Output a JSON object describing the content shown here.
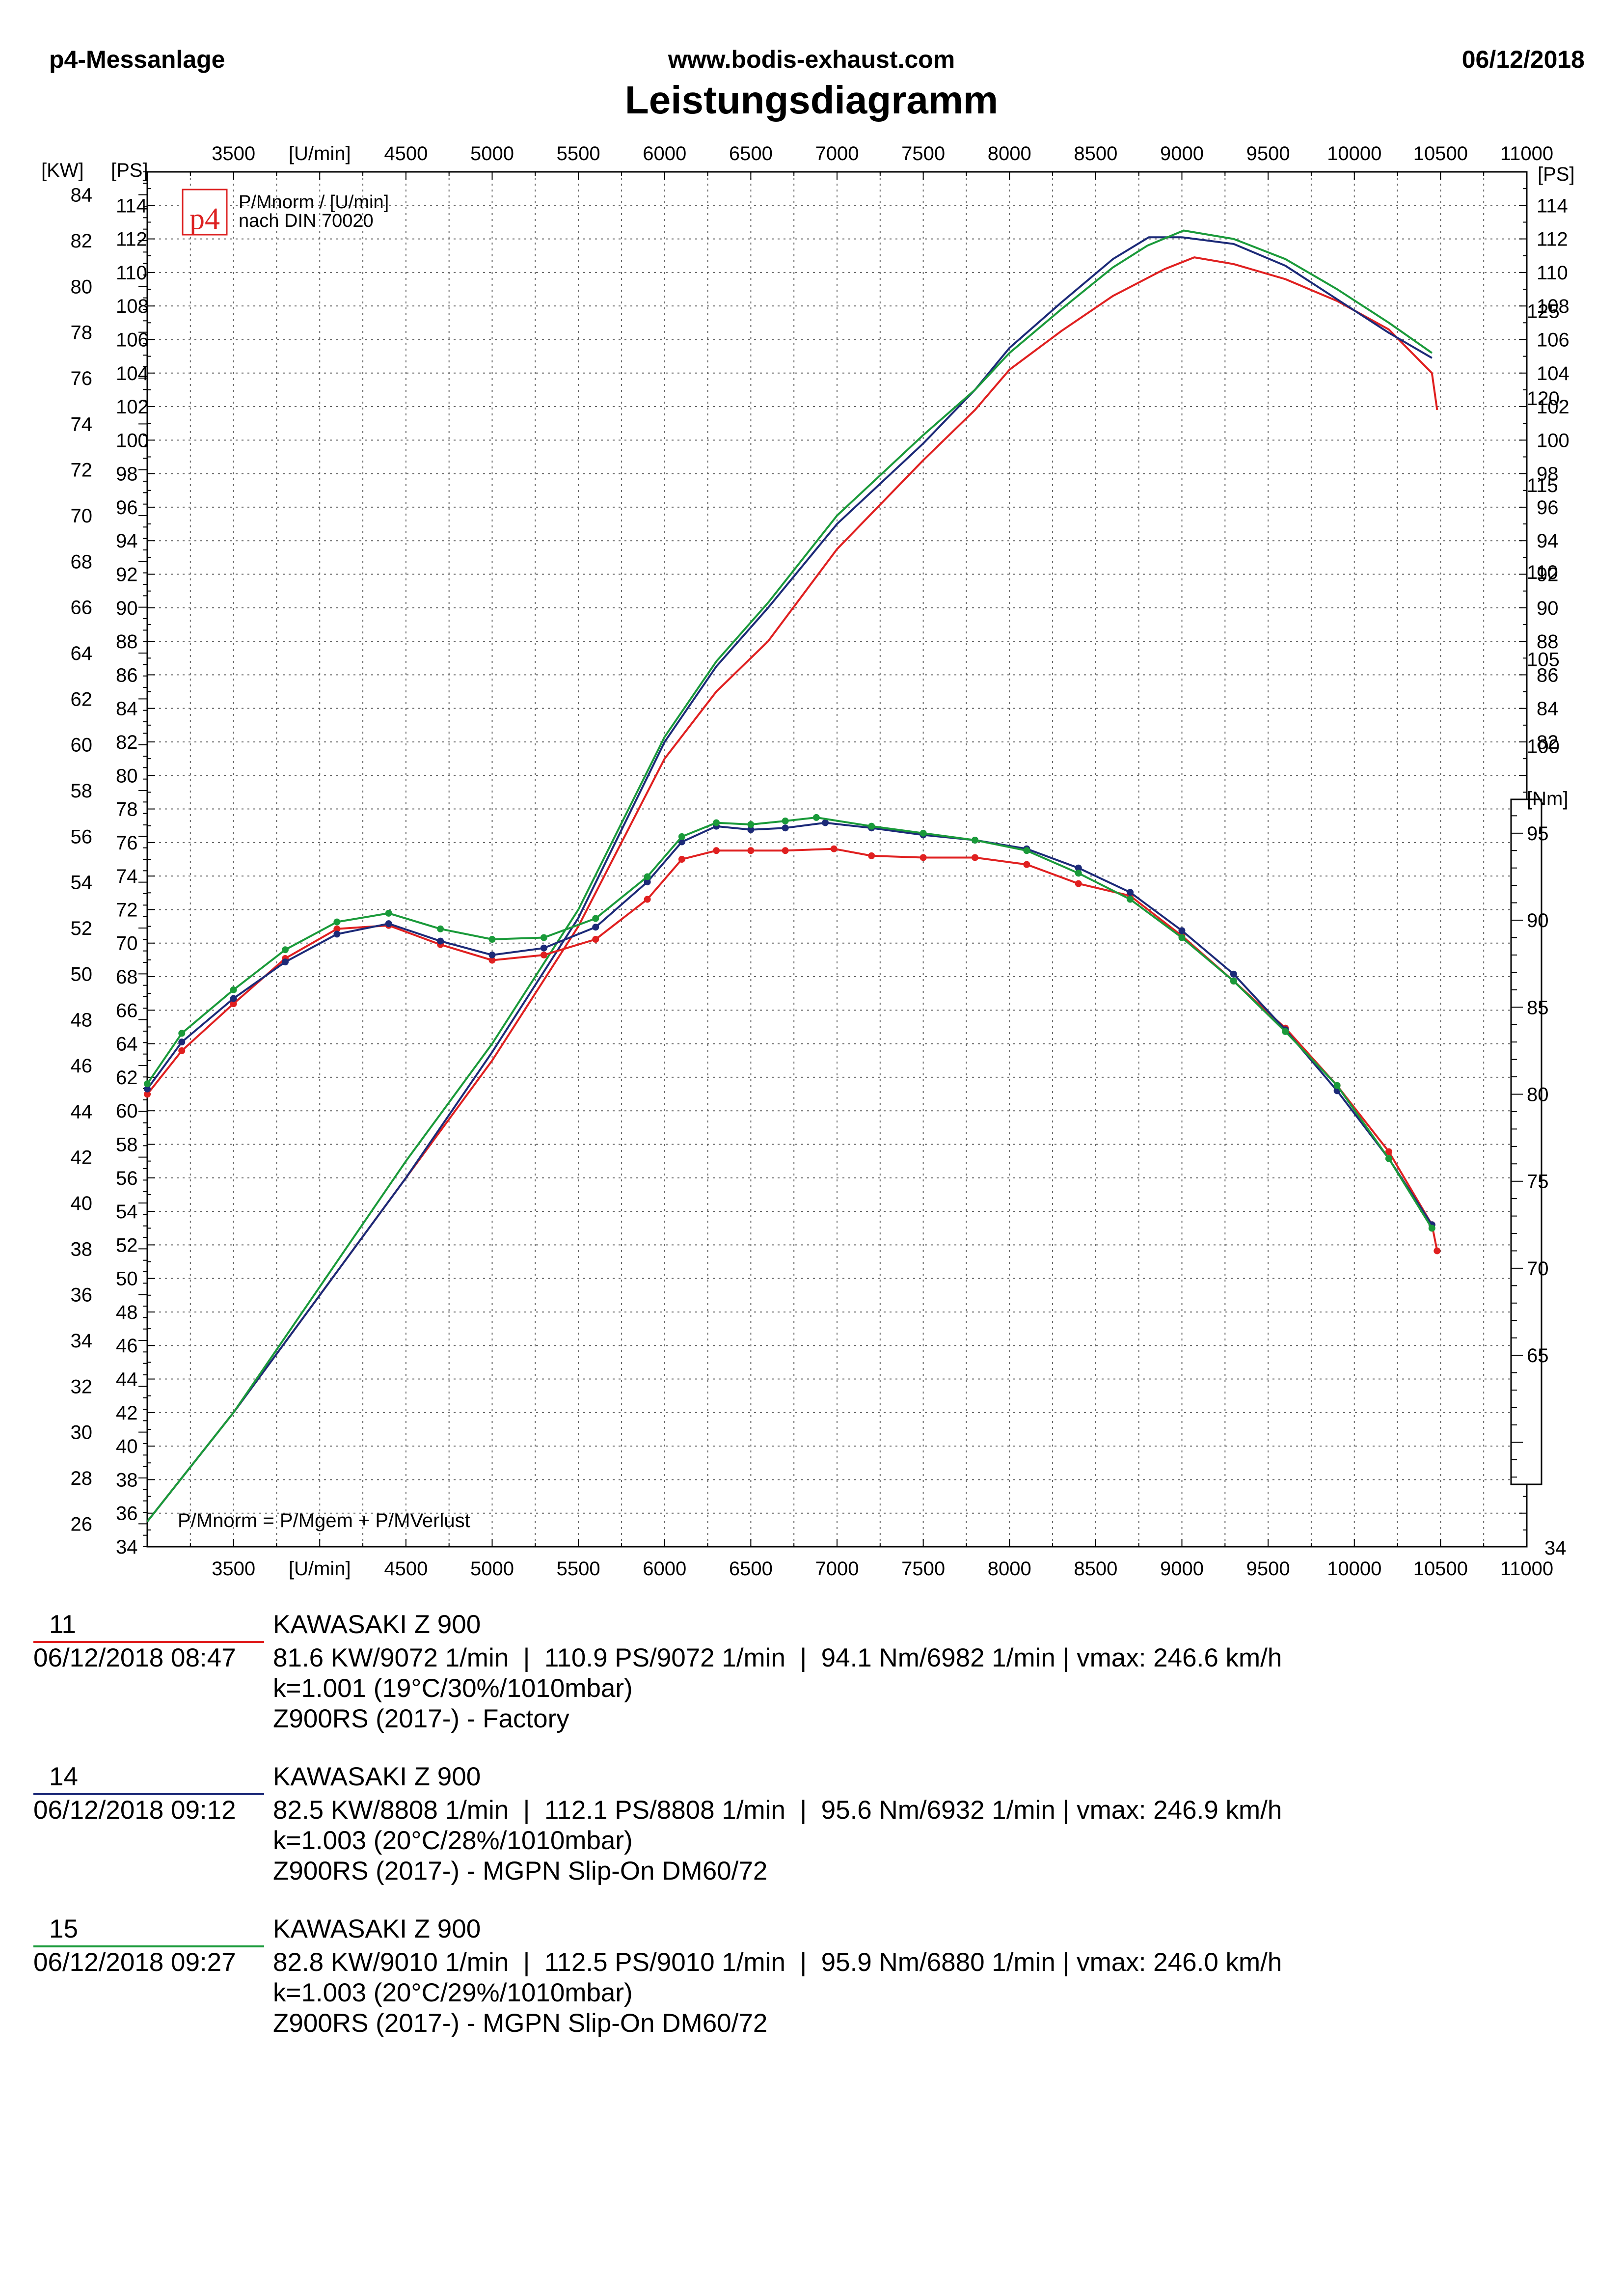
{
  "header": {
    "left": "p4-Messanlage",
    "center": "www.bodis-exhaust.com",
    "right": "06/12/2018",
    "title": "Leistungsdiagramm"
  },
  "chart_data": {
    "type": "line",
    "x_unit_label": "[U/min]",
    "x_ticks": [
      3500,
      4500,
      5000,
      5500,
      6000,
      6500,
      7000,
      7500,
      8000,
      8500,
      9000,
      9500,
      10000,
      10500,
      11000
    ],
    "xlim": [
      3000,
      11000
    ],
    "kw_axis": {
      "label": "[KW]",
      "lim": [
        25,
        85
      ],
      "ticks": [
        26,
        28,
        30,
        32,
        34,
        36,
        38,
        40,
        42,
        44,
        46,
        48,
        50,
        52,
        54,
        56,
        58,
        60,
        62,
        64,
        66,
        68,
        70,
        72,
        74,
        76,
        78,
        80,
        82,
        84
      ]
    },
    "ps_axis": {
      "label": "[PS]",
      "lim": [
        34,
        116
      ],
      "ticks": [
        34,
        36,
        38,
        40,
        42,
        44,
        46,
        48,
        50,
        52,
        54,
        56,
        58,
        60,
        62,
        64,
        66,
        68,
        70,
        72,
        74,
        76,
        78,
        80,
        82,
        84,
        86,
        88,
        90,
        92,
        94,
        96,
        98,
        100,
        102,
        104,
        106,
        108,
        110,
        112,
        114
      ]
    },
    "ps_axis_right_ticks": [
      82,
      84,
      86,
      88,
      90,
      92,
      94,
      96,
      98,
      100,
      102,
      104,
      106,
      108,
      110,
      112,
      114
    ],
    "ps_axis_right_bottom": "34",
    "nm_axis": {
      "label": "[Nm]",
      "lim": [
        54,
        133
      ],
      "ticks": [
        65,
        70,
        75,
        80,
        85,
        90,
        95,
        100,
        105,
        110,
        115,
        120,
        125
      ]
    },
    "legend_text": [
      "P/Mnorm / [U/min]",
      "nach DIN 70020"
    ],
    "logo_text": "p4",
    "formula": "P/Mnorm = P/Mgem + P/MVerlust",
    "grid": true,
    "series": [
      {
        "run": "11",
        "color": "#e02020",
        "power_ps": {
          "x": [
            3000,
            3500,
            4000,
            4500,
            5000,
            5500,
            6000,
            6300,
            6600,
            7000,
            7500,
            7800,
            8000,
            8300,
            8600,
            8900,
            9072,
            9300,
            9600,
            9900,
            10200,
            10450,
            10480
          ],
          "y": [
            35.5,
            42,
            49,
            56,
            63,
            71,
            81,
            85,
            88,
            93.5,
            98.8,
            101.8,
            104.2,
            106.5,
            108.6,
            110.2,
            110.9,
            110.5,
            109.6,
            108.3,
            106.6,
            104,
            101.8
          ]
        },
        "torque_nm": {
          "x": [
            3000,
            3200,
            3500,
            3800,
            4100,
            4400,
            4700,
            5000,
            5300,
            5600,
            5900,
            6100,
            6300,
            6500,
            6700,
            6982,
            7200,
            7500,
            7800,
            8100,
            8400,
            8700,
            9000,
            9300,
            9600,
            9900,
            10200,
            10450,
            10480
          ],
          "y": [
            80,
            82.5,
            85.2,
            87.8,
            89.5,
            89.7,
            88.6,
            87.7,
            88,
            88.9,
            91.2,
            93.5,
            94,
            94,
            94,
            94.1,
            93.7,
            93.6,
            93.6,
            93.2,
            92.1,
            91.4,
            89.1,
            86.5,
            83.8,
            80.5,
            76.7,
            72.5,
            71
          ]
        }
      },
      {
        "run": "14",
        "color": "#1c2a78",
        "power_ps": {
          "x": [
            3000,
            3500,
            4000,
            4500,
            5000,
            5500,
            6000,
            6300,
            6600,
            7000,
            7500,
            7800,
            8000,
            8300,
            8600,
            8808,
            9000,
            9300,
            9600,
            9900,
            10200,
            10450
          ],
          "y": [
            35.5,
            42,
            49,
            56,
            63.5,
            71.5,
            82,
            86.5,
            90,
            95,
            99.8,
            103,
            105.5,
            108.2,
            110.8,
            112.1,
            112.1,
            111.7,
            110.4,
            108.4,
            106.4,
            104.9
          ]
        },
        "torque_nm": {
          "x": [
            3000,
            3200,
            3500,
            3800,
            4100,
            4400,
            4700,
            5000,
            5300,
            5600,
            5900,
            6100,
            6300,
            6500,
            6700,
            6932,
            7200,
            7500,
            7800,
            8100,
            8400,
            8700,
            9000,
            9300,
            9600,
            9900,
            10200,
            10450
          ],
          "y": [
            80.3,
            83,
            85.5,
            87.6,
            89.2,
            89.8,
            88.8,
            88,
            88.4,
            89.6,
            92.2,
            94.5,
            95.4,
            95.2,
            95.3,
            95.6,
            95.3,
            94.9,
            94.6,
            94.1,
            93,
            91.6,
            89.4,
            86.9,
            83.7,
            80.2,
            76.3,
            72.5
          ]
        }
      },
      {
        "run": "15",
        "color": "#1a9a3a",
        "power_ps": {
          "x": [
            3000,
            3500,
            4000,
            4500,
            5000,
            5500,
            6000,
            6300,
            6600,
            7000,
            7500,
            7800,
            8000,
            8300,
            8600,
            8800,
            9010,
            9300,
            9600,
            9900,
            10200,
            10450
          ],
          "y": [
            35.5,
            42,
            49.5,
            57,
            64,
            72,
            82.3,
            86.8,
            90.3,
            95.5,
            100.3,
            103,
            105.2,
            107.8,
            110.3,
            111.6,
            112.5,
            112,
            110.8,
            109,
            107,
            105.2
          ]
        },
        "torque_nm": {
          "x": [
            3000,
            3200,
            3500,
            3800,
            4100,
            4400,
            4700,
            5000,
            5300,
            5600,
            5900,
            6100,
            6300,
            6500,
            6700,
            6880,
            7200,
            7500,
            7800,
            8100,
            8400,
            8700,
            9000,
            9300,
            9600,
            9900,
            10200,
            10450
          ],
          "y": [
            80.6,
            83.5,
            86,
            88.3,
            89.9,
            90.4,
            89.5,
            88.9,
            89,
            90.1,
            92.5,
            94.8,
            95.6,
            95.5,
            95.7,
            95.9,
            95.4,
            95,
            94.6,
            94,
            92.7,
            91.2,
            89,
            86.5,
            83.6,
            80.5,
            76.3,
            72.3
          ]
        }
      }
    ]
  },
  "runs": [
    {
      "no": "11",
      "datetime": "06/12/2018  08:47",
      "model": "KAWASAKI Z 900",
      "perf": "81.6 KW/9072 1/min  |  110.9 PS/9072 1/min  |  94.1 Nm/6982 1/min | vmax: 246.6 km/h",
      "cond": "k=1.001 (19°C/30%/1010mbar)",
      "config": "Z900RS (2017-) - Factory",
      "color": "#e02020"
    },
    {
      "no": "14",
      "datetime": "06/12/2018  09:12",
      "model": "KAWASAKI Z 900",
      "perf": "82.5 KW/8808 1/min  |  112.1 PS/8808 1/min  |  95.6 Nm/6932 1/min | vmax: 246.9 km/h",
      "cond": "k=1.003 (20°C/28%/1010mbar)",
      "config": "Z900RS (2017-) - MGPN Slip-On DM60/72",
      "color": "#1c2a78"
    },
    {
      "no": "15",
      "datetime": "06/12/2018  09:27",
      "model": "KAWASAKI Z 900",
      "perf": "82.8 KW/9010 1/min  |  112.5 PS/9010 1/min  |  95.9 Nm/6880 1/min | vmax: 246.0 km/h",
      "cond": "k=1.003 (20°C/29%/1010mbar)",
      "config": "Z900RS (2017-) - MGPN Slip-On DM60/72",
      "color": "#1a9a3a"
    }
  ]
}
